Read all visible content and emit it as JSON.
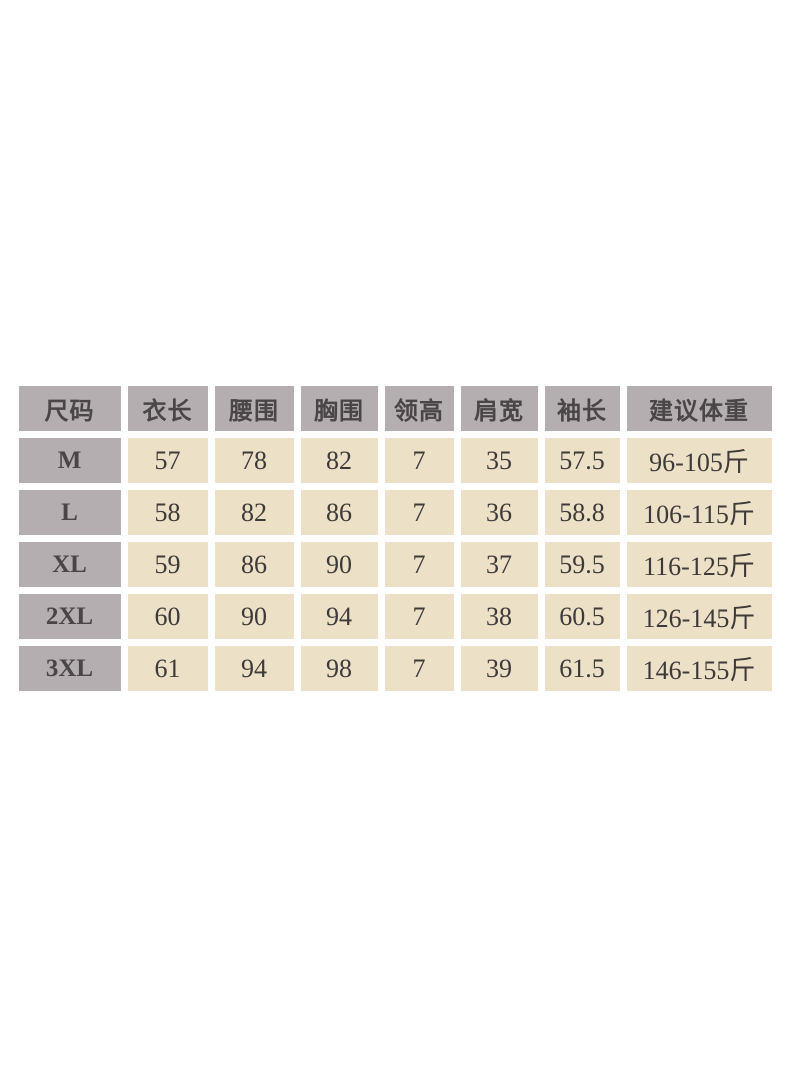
{
  "page": {
    "background": "#ffffff"
  },
  "size_chart": {
    "colors": {
      "header_bg": "#b5aeb0",
      "size_column_bg": "#b5aeb0",
      "value_cell_bg": "#ece0c6",
      "header_text": "#4a4546",
      "value_text": "#3e3a3a",
      "gap": "#ffffff"
    }
  },
  "chart_data": {
    "type": "table",
    "columns": [
      "尺码",
      "衣长",
      "腰围",
      "胸围",
      "领高",
      "肩宽",
      "袖长",
      "建议体重"
    ],
    "rows": [
      [
        "M",
        "57",
        "78",
        "82",
        "7",
        "35",
        "57.5",
        "96-105斤"
      ],
      [
        "L",
        "58",
        "82",
        "86",
        "7",
        "36",
        "58.8",
        "106-115斤"
      ],
      [
        "XL",
        "59",
        "86",
        "90",
        "7",
        "37",
        "59.5",
        "116-125斤"
      ],
      [
        "2XL",
        "60",
        "90",
        "94",
        "7",
        "38",
        "60.5",
        "126-145斤"
      ],
      [
        "3XL",
        "61",
        "94",
        "98",
        "7",
        "39",
        "61.5",
        "146-155斤"
      ]
    ]
  }
}
